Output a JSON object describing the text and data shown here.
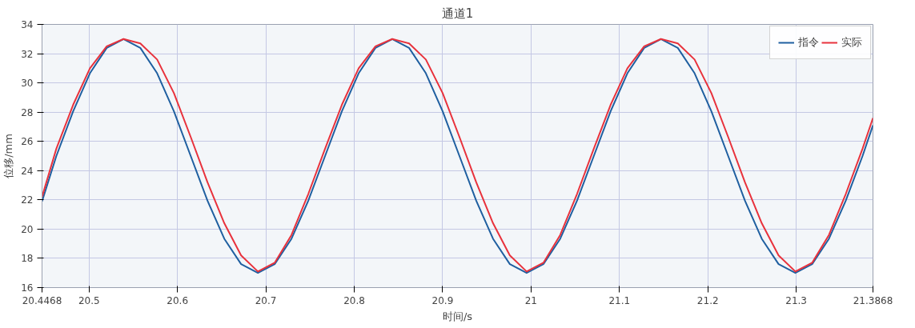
{
  "chart_data": {
    "type": "line",
    "title": "通道1",
    "xlabel": "时间/s",
    "ylabel": "位移/mm",
    "x": [
      20.4468,
      20.463,
      20.482,
      20.501,
      20.52,
      20.539,
      20.558,
      20.577,
      20.596,
      20.615,
      20.634,
      20.653,
      20.672,
      20.691,
      20.71,
      20.729,
      20.748,
      20.767,
      20.786,
      20.805,
      20.824,
      20.843,
      20.862,
      20.881,
      20.9,
      20.919,
      20.938,
      20.957,
      20.976,
      20.995,
      21.014,
      21.033,
      21.052,
      21.071,
      21.09,
      21.109,
      21.128,
      21.147,
      21.166,
      21.185,
      21.204,
      21.223,
      21.242,
      21.261,
      21.28,
      21.299,
      21.318,
      21.337,
      21.356,
      21.375,
      21.3868
    ],
    "series": [
      {
        "name": "指令",
        "color": "#1f5fa0",
        "values": [
          21.9,
          25,
          28.06,
          30.66,
          32.39,
          33,
          32.39,
          30.66,
          28.06,
          25,
          21.94,
          19.34,
          17.61,
          17,
          17.61,
          19.34,
          21.94,
          25,
          28.06,
          30.66,
          32.39,
          33,
          32.39,
          30.66,
          28.06,
          25,
          21.94,
          19.34,
          17.61,
          17,
          17.61,
          19.34,
          21.94,
          25,
          28.06,
          30.66,
          32.39,
          33,
          32.39,
          30.66,
          28.06,
          25,
          21.94,
          19.34,
          17.61,
          17,
          17.61,
          19.34,
          21.94,
          25,
          27.1
        ]
      },
      {
        "name": "实际",
        "color": "#e8323c",
        "values": [
          22.2,
          25.5,
          28.5,
          31.0,
          32.5,
          33,
          32.7,
          31.6,
          29.3,
          26.3,
          23.2,
          20.4,
          18.2,
          17.1,
          17.7,
          19.6,
          22.4,
          25.5,
          28.5,
          31.0,
          32.5,
          33,
          32.7,
          31.6,
          29.3,
          26.3,
          23.2,
          20.4,
          18.2,
          17.1,
          17.7,
          19.6,
          22.4,
          25.5,
          28.5,
          31.0,
          32.5,
          33,
          32.7,
          31.6,
          29.3,
          26.3,
          23.2,
          20.4,
          18.2,
          17.1,
          17.7,
          19.6,
          22.4,
          25.5,
          27.6
        ]
      }
    ],
    "xlim": [
      20.4468,
      21.3868
    ],
    "xticks": [
      20.4468,
      20.5,
      20.6,
      20.7,
      20.8,
      20.9,
      21,
      21.1,
      21.2,
      21.3,
      21.3868
    ],
    "ylim": [
      16,
      34
    ],
    "yticks": [
      16,
      18,
      20,
      22,
      24,
      26,
      28,
      30,
      32,
      34
    ],
    "grid": true,
    "legend": "top right",
    "marker": "none",
    "line_style": "solid"
  }
}
